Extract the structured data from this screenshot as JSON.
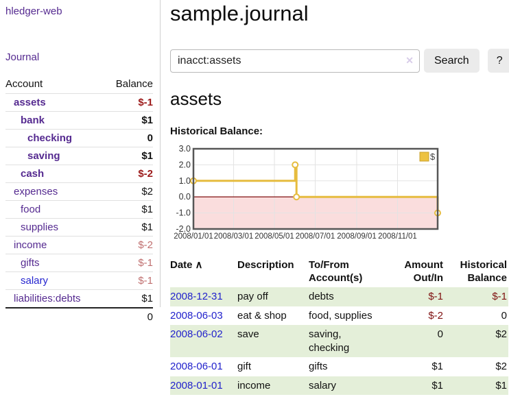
{
  "sidebar": {
    "app_title": "hledger-web",
    "journal_label": "Journal",
    "account_header": "Account",
    "balance_header": "Balance",
    "accounts": [
      {
        "name": "assets",
        "balance": "$-1"
      },
      {
        "name": "bank",
        "balance": "$1"
      },
      {
        "name": "checking",
        "balance": "0"
      },
      {
        "name": "saving",
        "balance": "$1"
      },
      {
        "name": "cash",
        "balance": "$-2"
      },
      {
        "name": "expenses",
        "balance": "$2"
      },
      {
        "name": "food",
        "balance": "$1"
      },
      {
        "name": "supplies",
        "balance": "$1"
      },
      {
        "name": "income",
        "balance": "$-2"
      },
      {
        "name": "gifts",
        "balance": "$-1"
      },
      {
        "name": "salary",
        "balance": "$-1"
      },
      {
        "name": "liabilities:debts",
        "balance": "$1"
      }
    ],
    "total": "0"
  },
  "main": {
    "title": "sample.journal",
    "search": {
      "value": "inacct:assets",
      "clear_icon": "✕",
      "search_button": "Search",
      "help_button": "?"
    },
    "section_heading": "assets",
    "chart_label": "Historical Balance:"
  },
  "chart_data": {
    "type": "line",
    "title": "Historical Balance:",
    "line_style": "step-after",
    "x_domain": [
      "2008-01-01",
      "2008-12-31"
    ],
    "ylim": [
      -2,
      3
    ],
    "yticks": [
      {
        "value": 3,
        "label": "3.0"
      },
      {
        "value": 2,
        "label": "2.0"
      },
      {
        "value": 1,
        "label": "1.0"
      },
      {
        "value": 0,
        "label": "0.0"
      },
      {
        "value": -1,
        "label": "-1.0"
      },
      {
        "value": -2,
        "label": "-2.0"
      }
    ],
    "xticks": [
      {
        "date": "2008-01-01",
        "label": "2008/01/01"
      },
      {
        "date": "2008-03-01",
        "label": "2008/03/01"
      },
      {
        "date": "2008-05-01",
        "label": "2008/05/01"
      },
      {
        "date": "2008-07-01",
        "label": "2008/07/01"
      },
      {
        "date": "2008-09-01",
        "label": "2008/09/01"
      },
      {
        "date": "2008-11-01",
        "label": "2008/11/01"
      }
    ],
    "series": [
      {
        "name": "$",
        "color": "#e6bc3f",
        "data": [
          [
            "2008-01-01",
            1
          ],
          [
            "2008-06-01",
            2
          ],
          [
            "2008-06-03",
            0
          ],
          [
            "2008-12-31",
            -1
          ]
        ]
      }
    ],
    "legend_position": "top-right",
    "grid": true,
    "colors": {
      "line": "#e6bc3f",
      "legend_fill": "#edc240",
      "legend_border": "#c9a22e",
      "negative_region": "#fadddd",
      "zero_line": "#8b2222",
      "gridline": "#e3e3e3",
      "border": "#565656"
    }
  },
  "register": {
    "headers": {
      "date": "Date",
      "sort_arrow": "∧",
      "description": "Description",
      "accounts": "To/From Account(s)",
      "amount": "Amount Out/In",
      "balance": "Historical Balance"
    },
    "rows": [
      {
        "date": "2008-12-31",
        "description": "pay off",
        "accounts": "debts",
        "amount": "$-1",
        "balance": "$-1"
      },
      {
        "date": "2008-06-03",
        "description": "eat & shop",
        "accounts": "food, supplies",
        "amount": "$-2",
        "balance": "0"
      },
      {
        "date": "2008-06-02",
        "description": "save",
        "accounts": "saving, checking",
        "amount": "0",
        "balance": "$2"
      },
      {
        "date": "2008-06-01",
        "description": "gift",
        "accounts": "gifts",
        "amount": "$1",
        "balance": "$2"
      },
      {
        "date": "2008-01-01",
        "description": "income",
        "accounts": "salary",
        "amount": "$1",
        "balance": "$1"
      }
    ]
  }
}
